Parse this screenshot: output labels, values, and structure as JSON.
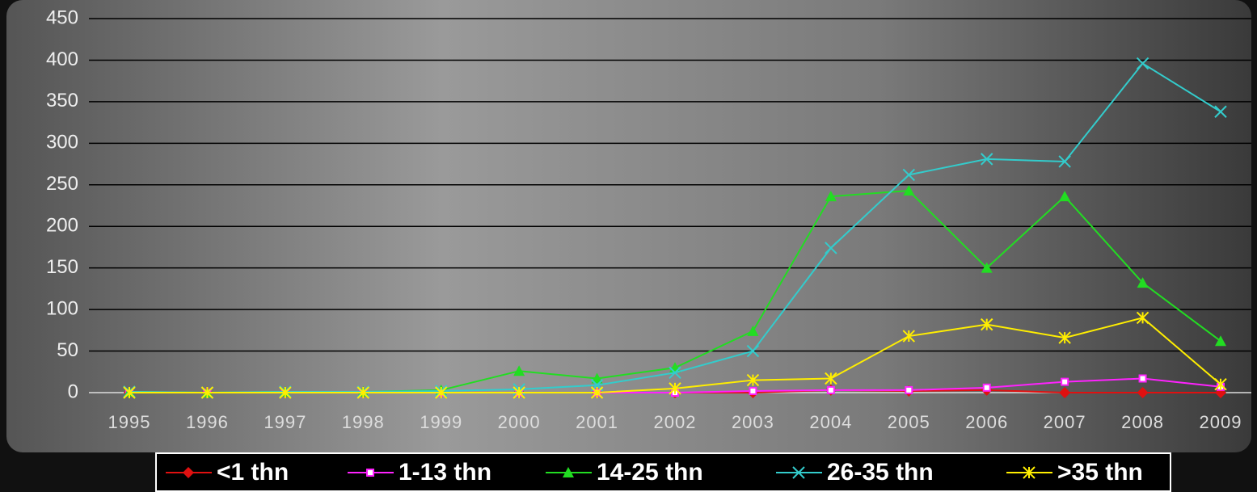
{
  "chart_data": {
    "type": "line",
    "categories": [
      "1995",
      "1996",
      "1997",
      "1998",
      "1999",
      "2000",
      "2001",
      "2002",
      "2003",
      "2004",
      "2005",
      "2006",
      "2007",
      "2008",
      "2009"
    ],
    "series": [
      {
        "name": "<1 thn",
        "color": "#e01010",
        "marker": "diamond",
        "values": [
          0,
          0,
          0,
          0,
          0,
          0,
          0,
          0,
          0,
          3,
          2,
          3,
          0,
          0,
          0
        ]
      },
      {
        "name": "1-13 thn",
        "color": "#ff22ff",
        "marker": "square",
        "values": [
          0,
          0,
          0,
          0,
          0,
          0,
          0,
          0,
          2,
          3,
          3,
          6,
          13,
          17,
          7
        ]
      },
      {
        "name": "14-25 thn",
        "color": "#22dd22",
        "marker": "triangle",
        "values": [
          1,
          0,
          1,
          1,
          3,
          26,
          17,
          30,
          74,
          236,
          243,
          150,
          236,
          132,
          62
        ]
      },
      {
        "name": "26-35 thn",
        "color": "#33cccc",
        "marker": "x",
        "values": [
          1,
          0,
          1,
          1,
          2,
          4,
          9,
          24,
          50,
          174,
          262,
          281,
          278,
          396,
          338
        ]
      },
      {
        "name": ">35 thn",
        "color": "#ffee00",
        "marker": "star",
        "values": [
          0,
          0,
          0,
          0,
          0,
          0,
          0,
          5,
          15,
          17,
          68,
          82,
          66,
          90,
          10
        ]
      }
    ],
    "ylim": [
      0,
      450
    ],
    "yticks": [
      0,
      50,
      100,
      150,
      200,
      250,
      300,
      350,
      400,
      450
    ],
    "grid": true,
    "legend": "bottom"
  }
}
